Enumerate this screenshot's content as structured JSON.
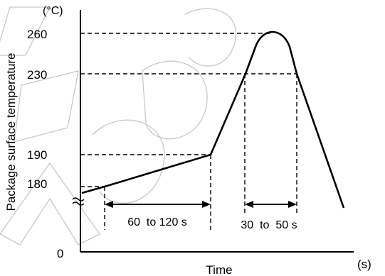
{
  "chart_data": {
    "type": "line",
    "title": "",
    "xlabel": "Time",
    "ylabel": "Package surface temperature",
    "y_unit": "(°C)",
    "x_unit": "(s)",
    "y_ticks": [
      "260",
      "230",
      "190",
      "180",
      "0"
    ],
    "grid": false,
    "series": [
      {
        "points": [
          {
            "x": 0,
            "y": 175
          },
          {
            "x": 30,
            "y": 180
          },
          {
            "x": 180,
            "y": 190
          },
          {
            "x": 230,
            "y": 230
          },
          {
            "x": 245,
            "y": 260
          },
          {
            "x": 265,
            "y": 260
          },
          {
            "x": 292,
            "y": 230
          },
          {
            "x": 350,
            "y": 0
          }
        ]
      }
    ],
    "annotations": [
      {
        "label": "60  to 120 s"
      },
      {
        "label": "30  to  50 s"
      }
    ]
  }
}
